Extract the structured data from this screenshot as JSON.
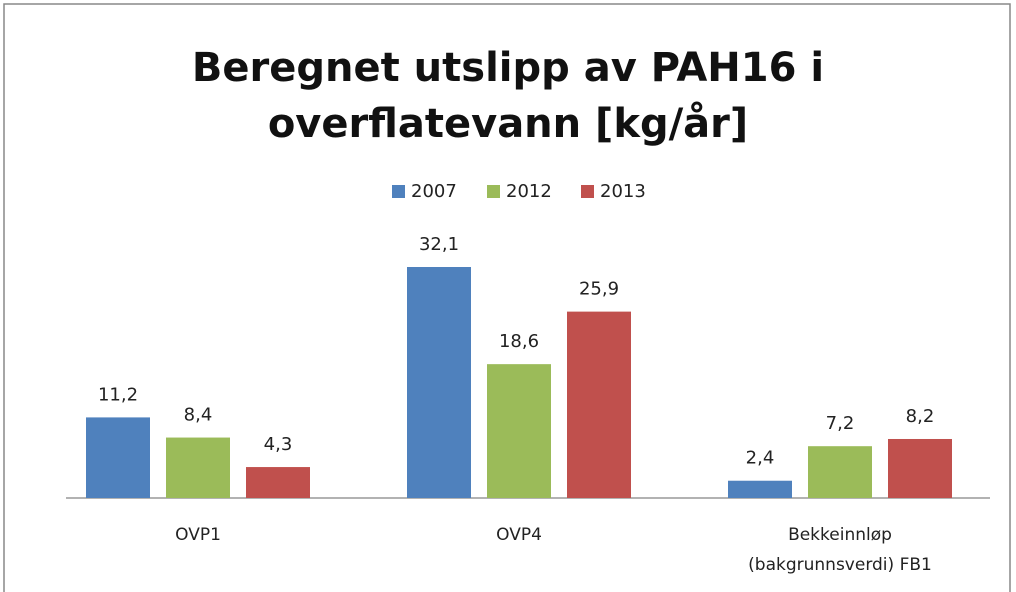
{
  "chart_data": {
    "type": "bar",
    "title": "Beregnet utslipp av PAH16 i overflatevann [kg/år]",
    "categories": [
      "OVP1",
      "OVP4",
      "Bekkeinnløp (bakgrunnsverdi) FB1"
    ],
    "series": [
      {
        "name": "2007",
        "color": "#4f81bd",
        "values": [
          11.2,
          32.1,
          2.4
        ],
        "value_labels": [
          "11,2",
          "32,1",
          "2,4"
        ]
      },
      {
        "name": "2012",
        "color": "#9bbb59",
        "values": [
          8.4,
          18.6,
          7.2
        ],
        "value_labels": [
          "8,4",
          "18,6",
          "7,2"
        ]
      },
      {
        "name": "2013",
        "color": "#c0504d",
        "values": [
          4.3,
          25.9,
          8.2
        ],
        "value_labels": [
          "4,3",
          "25,9",
          "8,2"
        ]
      }
    ],
    "legend": "top"
  }
}
